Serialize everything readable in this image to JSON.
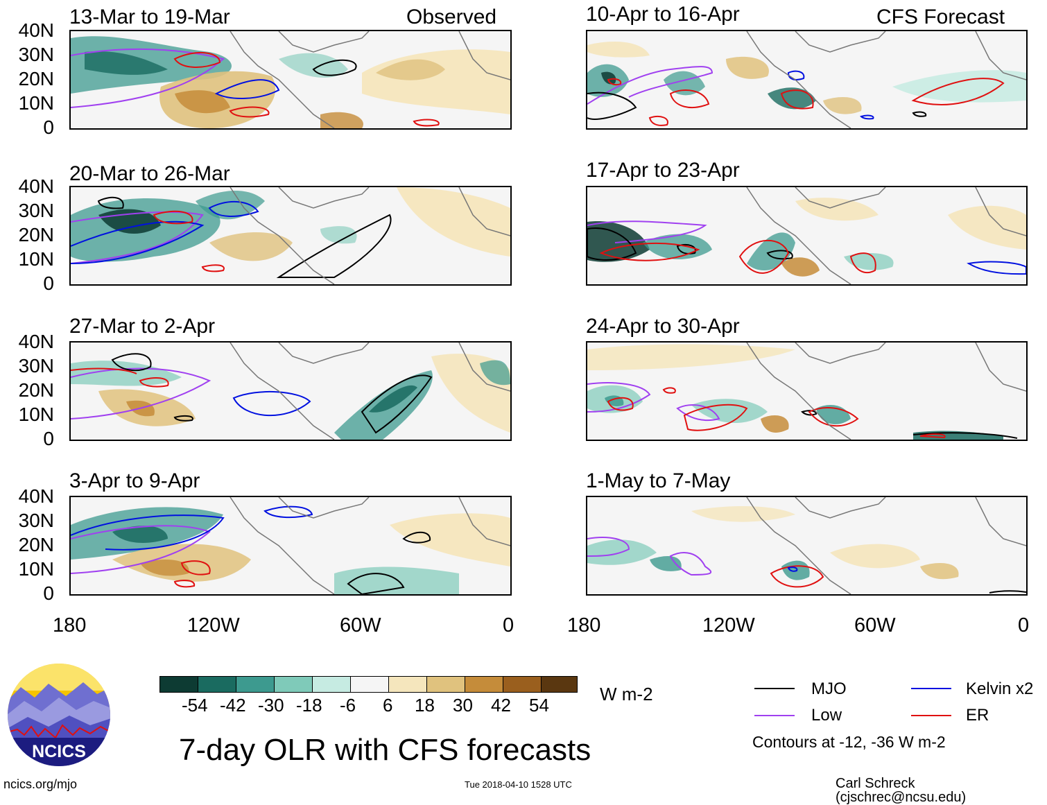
{
  "panels": {
    "left": [
      {
        "title": "13-Mar to 19-Mar",
        "label": "Observed"
      },
      {
        "title": "20-Mar to 26-Mar",
        "label": ""
      },
      {
        "title": "27-Mar to 2-Apr",
        "label": ""
      },
      {
        "title": "3-Apr to 9-Apr",
        "label": ""
      }
    ],
    "right": [
      {
        "title": "10-Apr to 16-Apr",
        "label": "CFS Forecast"
      },
      {
        "title": "17-Apr to 23-Apr",
        "label": ""
      },
      {
        "title": "24-Apr to 30-Apr",
        "label": ""
      },
      {
        "title": "1-May to 7-May",
        "label": ""
      }
    ]
  },
  "y_axis": {
    "ticks": [
      "40N",
      "30N",
      "20N",
      "10N",
      "0"
    ]
  },
  "x_axis": {
    "ticks": [
      "180",
      "120W",
      "60W",
      "0"
    ]
  },
  "colorbar": {
    "colors": [
      "#0d3b33",
      "#1a6b60",
      "#3d9a8f",
      "#7fcab9",
      "#c6ebe2",
      "#f5f5f5",
      "#f5e6bd",
      "#e0c27e",
      "#c58c3a",
      "#9a5f1e",
      "#5a3710"
    ],
    "labels": [
      "-54",
      "-42",
      "-30",
      "-18",
      "-6",
      "6",
      "18",
      "30",
      "42",
      "54"
    ],
    "units": "W m-2"
  },
  "legend": {
    "mjo": {
      "label": "MJO",
      "color": "#000000"
    },
    "kelvin": {
      "label": "Kelvin x2",
      "color": "#0010e0"
    },
    "low": {
      "label": "Low",
      "color": "#a040f0"
    },
    "er": {
      "label": "ER",
      "color": "#e01010"
    },
    "note": "Contours at -12, -36 W m-2"
  },
  "main_title": "7-day OLR with CFS forecasts",
  "logo": {
    "text": "NCICS"
  },
  "footer": {
    "left": "ncics.org/mjo",
    "center": "Tue 2018-04-10 1528 UTC",
    "right": "Carl Schreck (cjschrec@ncsu.edu)"
  }
}
